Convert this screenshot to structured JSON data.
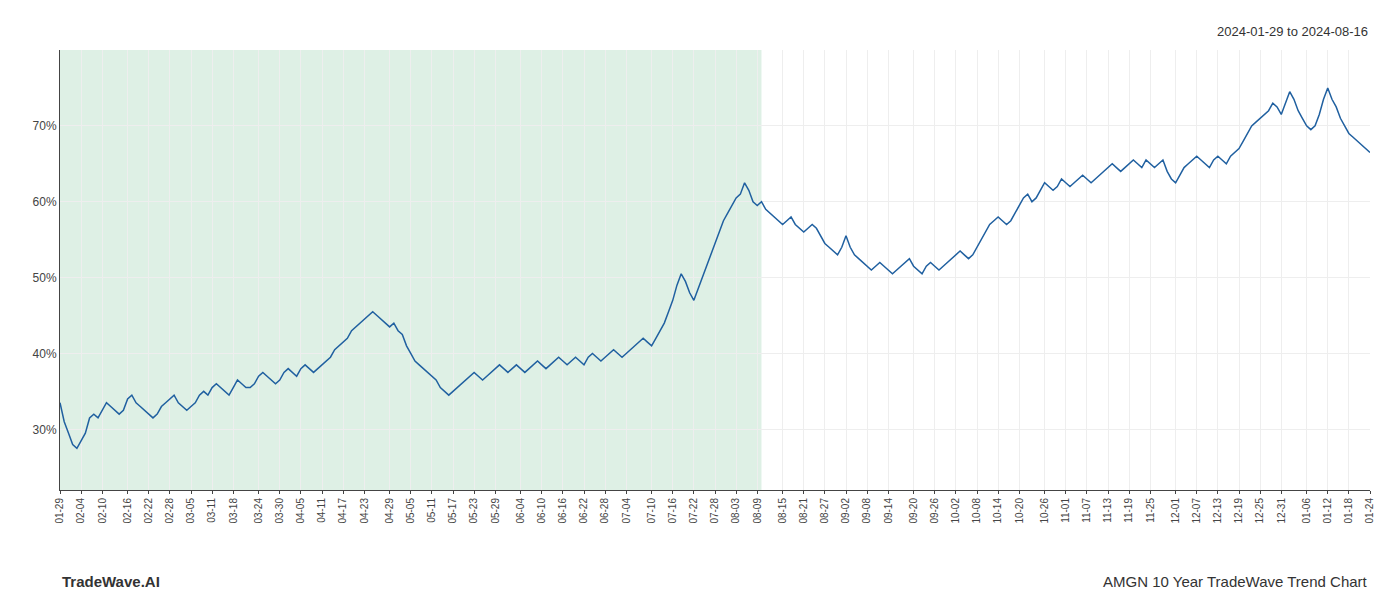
{
  "chart_data": {
    "type": "line",
    "subtitle": "2024-01-29 to 2024-08-16",
    "annotations": [
      "TradeWave.AI",
      "AMGN 10 Year TradeWave Trend Chart"
    ],
    "color": "#2060a0",
    "grid": true,
    "shaded_span": {
      "start": 0,
      "end": 166,
      "color": "#c8e6d4"
    },
    "ylim": [
      22,
      80
    ],
    "yticks": [
      {
        "value": 30,
        "label": "30%"
      },
      {
        "value": 40,
        "label": "40%"
      },
      {
        "value": 50,
        "label": "50%"
      },
      {
        "value": 60,
        "label": "60%"
      },
      {
        "value": 70,
        "label": "70%"
      }
    ],
    "categories": [
      "01-29",
      null,
      null,
      null,
      null,
      "02-04",
      null,
      null,
      null,
      null,
      "02-10",
      null,
      null,
      null,
      null,
      null,
      "02-16",
      null,
      null,
      null,
      null,
      "02-22",
      null,
      null,
      null,
      null,
      "02-28",
      null,
      null,
      null,
      null,
      "03-05",
      null,
      null,
      null,
      null,
      "03-11",
      null,
      null,
      null,
      null,
      "03-18",
      null,
      null,
      null,
      null,
      null,
      "03-24",
      null,
      null,
      null,
      null,
      "03-30",
      null,
      null,
      null,
      null,
      "04-05",
      null,
      null,
      null,
      null,
      "04-11",
      null,
      null,
      null,
      null,
      "04-17",
      null,
      null,
      null,
      null,
      "04-23",
      null,
      null,
      null,
      null,
      null,
      "04-29",
      null,
      null,
      null,
      null,
      "05-05",
      null,
      null,
      null,
      null,
      "05-11",
      null,
      null,
      null,
      null,
      "05-17",
      null,
      null,
      null,
      null,
      "05-23",
      null,
      null,
      null,
      null,
      "05-29",
      null,
      null,
      null,
      null,
      null,
      "06-04",
      null,
      null,
      null,
      null,
      "06-10",
      null,
      null,
      null,
      null,
      "06-16",
      null,
      null,
      null,
      null,
      "06-22",
      null,
      null,
      null,
      null,
      "06-28",
      null,
      null,
      null,
      null,
      "07-04",
      null,
      null,
      null,
      null,
      null,
      "07-10",
      null,
      null,
      null,
      null,
      "07-16",
      null,
      null,
      null,
      null,
      "07-22",
      null,
      null,
      null,
      null,
      "07-28",
      null,
      null,
      null,
      null,
      "08-03",
      null,
      null,
      null,
      null,
      "08-09",
      null,
      null,
      null,
      null,
      null,
      "08-15",
      null,
      null,
      null,
      null,
      "08-21",
      null,
      null,
      null,
      null,
      "08-27",
      null,
      null,
      null,
      null,
      "09-02",
      null,
      null,
      null,
      null,
      "09-08",
      null,
      null,
      null,
      null,
      "09-14",
      null,
      null,
      null,
      null,
      null,
      "09-20",
      null,
      null,
      null,
      null,
      "09-26",
      null,
      null,
      null,
      null,
      "10-02",
      null,
      null,
      null,
      null,
      "10-08",
      null,
      null,
      null,
      null,
      "10-14",
      null,
      null,
      null,
      null,
      "10-20",
      null,
      null,
      null,
      null,
      null,
      "10-26",
      null,
      null,
      null,
      null,
      "11-01",
      null,
      null,
      null,
      null,
      "11-07",
      null,
      null,
      null,
      null,
      "11-13",
      null,
      null,
      null,
      null,
      "11-19",
      null,
      null,
      null,
      null,
      "11-25",
      null,
      null,
      null,
      null,
      null,
      "12-01",
      null,
      null,
      null,
      null,
      "12-07",
      null,
      null,
      null,
      null,
      "12-13",
      null,
      null,
      null,
      null,
      "12-19",
      null,
      null,
      null,
      null,
      "12-25",
      null,
      null,
      null,
      null,
      "12-31",
      null,
      null,
      null,
      null,
      null,
      "01-06",
      null,
      null,
      null,
      null,
      "01-12",
      null,
      null,
      null,
      null,
      "01-18",
      null,
      null,
      null,
      null,
      "01-24"
    ],
    "values": [
      33.5,
      31.0,
      29.5,
      28.0,
      27.5,
      28.5,
      29.5,
      31.5,
      32.0,
      31.5,
      32.5,
      33.5,
      33.0,
      32.5,
      32.0,
      32.5,
      34.0,
      34.5,
      33.5,
      33.0,
      32.5,
      32.0,
      31.5,
      32.0,
      33.0,
      33.5,
      34.0,
      34.5,
      33.5,
      33.0,
      32.5,
      33.0,
      33.5,
      34.5,
      35.0,
      34.5,
      35.5,
      36.0,
      35.5,
      35.0,
      34.5,
      35.5,
      36.5,
      36.0,
      35.5,
      35.5,
      36.0,
      37.0,
      37.5,
      37.0,
      36.5,
      36.0,
      36.5,
      37.5,
      38.0,
      37.5,
      37.0,
      38.0,
      38.5,
      38.0,
      37.5,
      38.0,
      38.5,
      39.0,
      39.5,
      40.5,
      41.0,
      41.5,
      42.0,
      43.0,
      43.5,
      44.0,
      44.5,
      45.0,
      45.5,
      45.0,
      44.5,
      44.0,
      43.5,
      44.0,
      43.0,
      42.5,
      41.0,
      40.0,
      39.0,
      38.5,
      38.0,
      37.5,
      37.0,
      36.5,
      35.5,
      35.0,
      34.5,
      35.0,
      35.5,
      36.0,
      36.5,
      37.0,
      37.5,
      37.0,
      36.5,
      37.0,
      37.5,
      38.0,
      38.5,
      38.0,
      37.5,
      38.0,
      38.5,
      38.0,
      37.5,
      38.0,
      38.5,
      39.0,
      38.5,
      38.0,
      38.5,
      39.0,
      39.5,
      39.0,
      38.5,
      39.0,
      39.5,
      39.0,
      38.5,
      39.5,
      40.0,
      39.5,
      39.0,
      39.5,
      40.0,
      40.5,
      40.0,
      39.5,
      40.0,
      40.5,
      41.0,
      41.5,
      42.0,
      41.5,
      41.0,
      42.0,
      43.0,
      44.0,
      45.5,
      47.0,
      49.0,
      50.5,
      49.5,
      48.0,
      47.0,
      48.5,
      50.0,
      51.5,
      53.0,
      54.5,
      56.0,
      57.5,
      58.5,
      59.5,
      60.5,
      61.0,
      62.5,
      61.5,
      60.0,
      59.5,
      60.0,
      59.0,
      58.5,
      58.0,
      57.5,
      57.0,
      57.5,
      58.0,
      57.0,
      56.5,
      56.0,
      56.5,
      57.0,
      56.5,
      55.5,
      54.5,
      54.0,
      53.5,
      53.0,
      54.0,
      55.5,
      54.0,
      53.0,
      52.5,
      52.0,
      51.5,
      51.0,
      51.5,
      52.0,
      51.5,
      51.0,
      50.5,
      51.0,
      51.5,
      52.0,
      52.5,
      51.5,
      51.0,
      50.5,
      51.5,
      52.0,
      51.5,
      51.0,
      51.5,
      52.0,
      52.5,
      53.0,
      53.5,
      53.0,
      52.5,
      53.0,
      54.0,
      55.0,
      56.0,
      57.0,
      57.5,
      58.0,
      57.5,
      57.0,
      57.5,
      58.5,
      59.5,
      60.5,
      61.0,
      60.0,
      60.5,
      61.5,
      62.5,
      62.0,
      61.5,
      62.0,
      63.0,
      62.5,
      62.0,
      62.5,
      63.0,
      63.5,
      63.0,
      62.5,
      63.0,
      63.5,
      64.0,
      64.5,
      65.0,
      64.5,
      64.0,
      64.5,
      65.0,
      65.5,
      65.0,
      64.5,
      65.5,
      65.0,
      64.5,
      65.0,
      65.5,
      64.0,
      63.0,
      62.5,
      63.5,
      64.5,
      65.0,
      65.5,
      66.0,
      65.5,
      65.0,
      64.5,
      65.5,
      66.0,
      65.5,
      65.0,
      66.0,
      66.5,
      67.0,
      68.0,
      69.0,
      70.0,
      70.5,
      71.0,
      71.5,
      72.0,
      73.0,
      72.5,
      71.5,
      73.0,
      74.5,
      73.5,
      72.0,
      71.0,
      70.0,
      69.5,
      70.0,
      71.5,
      73.5,
      75.0,
      73.5,
      72.5,
      71.0,
      70.0,
      69.0,
      68.5,
      68.0,
      67.5,
      67.0,
      66.5
    ]
  }
}
